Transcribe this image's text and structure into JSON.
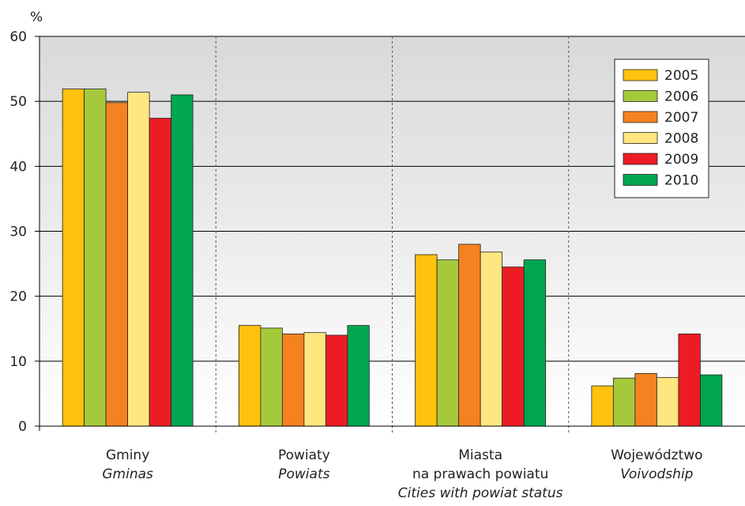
{
  "chart_data": {
    "type": "bar",
    "ylabel": "%",
    "ylim": [
      0,
      60
    ],
    "yticks": [
      0,
      10,
      20,
      30,
      40,
      50,
      60
    ],
    "grid": true,
    "legend_position": "top-right",
    "categories": [
      {
        "lines": [
          "Gminy"
        ],
        "italic_lines": [
          "Gminas"
        ]
      },
      {
        "lines": [
          "Powiaty"
        ],
        "italic_lines": [
          "Powiats"
        ]
      },
      {
        "lines": [
          "Miasta",
          "na prawach powiatu"
        ],
        "italic_lines": [
          "Cities with powiat status"
        ]
      },
      {
        "lines": [
          "Województwo"
        ],
        "italic_lines": [
          "Voivodship"
        ]
      }
    ],
    "series": [
      {
        "name": "2005",
        "color": "#ffc20e",
        "values": [
          51.9,
          15.5,
          26.4,
          6.2
        ]
      },
      {
        "name": "2006",
        "color": "#a6c93c",
        "values": [
          51.9,
          15.1,
          25.6,
          7.4
        ]
      },
      {
        "name": "2007",
        "color": "#f58220",
        "values": [
          49.8,
          14.2,
          28.0,
          8.1
        ]
      },
      {
        "name": "2008",
        "color": "#ffe680",
        "values": [
          51.4,
          14.4,
          26.8,
          7.5
        ]
      },
      {
        "name": "2009",
        "color": "#ed1c24",
        "values": [
          47.4,
          14.0,
          24.5,
          14.2
        ]
      },
      {
        "name": "2010",
        "color": "#00a651",
        "values": [
          51.0,
          15.5,
          25.6,
          7.9
        ]
      }
    ]
  }
}
